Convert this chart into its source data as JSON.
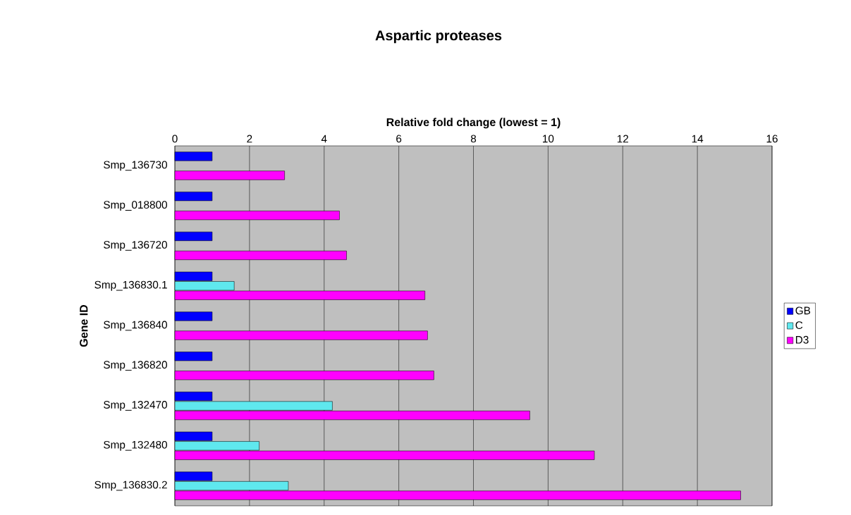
{
  "chart_data": {
    "type": "bar",
    "orientation": "horizontal",
    "title": "Aspartic proteases",
    "xlabel": "Relative fold change (lowest = 1)",
    "ylabel": "Gene ID",
    "categories": [
      "Smp_136730",
      "Smp_018800",
      "Smp_136720",
      "Smp_136830.1",
      "Smp_136840",
      "Smp_136820",
      "Smp_132470",
      "Smp_132480",
      "Smp_136830.2"
    ],
    "series": [
      {
        "name": "GB",
        "color": "#0000ff",
        "values": [
          1.0,
          1.0,
          1.0,
          1.0,
          1.0,
          1.0,
          1.0,
          1.0,
          1.0
        ]
      },
      {
        "name": "C",
        "color": "#5fe8ee",
        "values": [
          null,
          null,
          null,
          1.59,
          null,
          null,
          4.22,
          2.26,
          3.04
        ]
      },
      {
        "name": "D3",
        "color": "#ff00ff",
        "values": [
          2.94,
          4.41,
          4.6,
          6.7,
          6.77,
          6.94,
          9.51,
          11.24,
          15.16
        ]
      }
    ],
    "xlim": [
      0,
      16
    ],
    "xticks": [
      0,
      2,
      4,
      6,
      8,
      10,
      12,
      14,
      16
    ],
    "grid": "x",
    "legend": "right"
  }
}
